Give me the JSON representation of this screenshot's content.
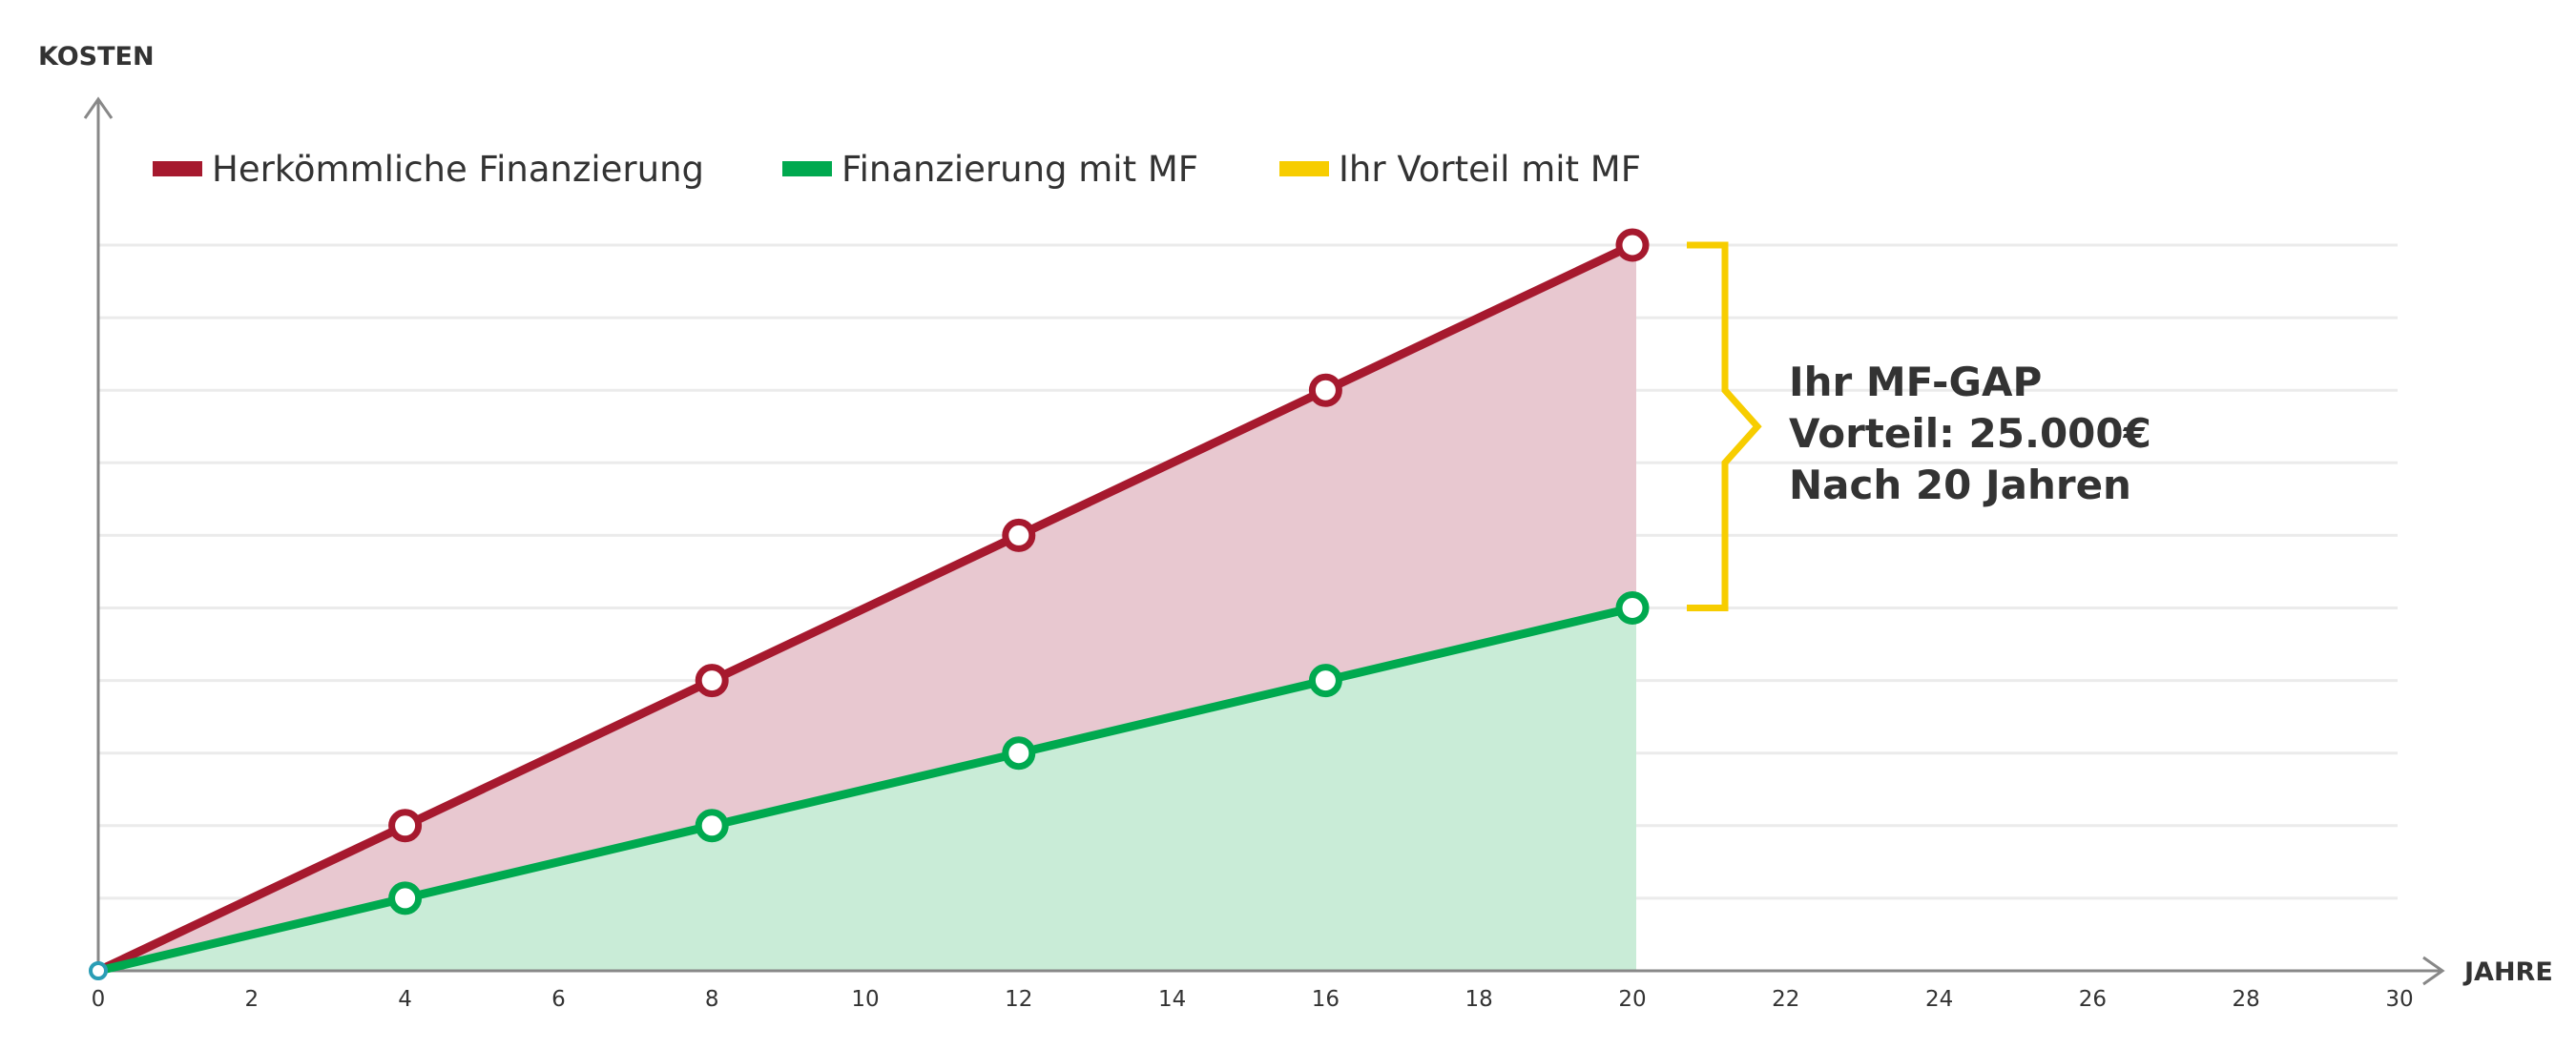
{
  "chart_data": {
    "type": "area",
    "xlabel": "JAHRE",
    "ylabel": "KOSTEN",
    "xlim": [
      0,
      30
    ],
    "ylim": [
      0,
      10
    ],
    "x_ticks": [
      0,
      2,
      4,
      6,
      8,
      10,
      12,
      14,
      16,
      18,
      20,
      22,
      24,
      26,
      28,
      30
    ],
    "x_tick_labels": [
      "0",
      "2",
      "4",
      "6",
      "8",
      "10",
      "12",
      "14",
      "16",
      "18",
      "20",
      "22",
      "24",
      "26",
      "28",
      "30"
    ],
    "grid": true,
    "grid_values": [
      1,
      2,
      3,
      4,
      5,
      6,
      7,
      8,
      9,
      10
    ],
    "series": [
      {
        "name": "Herkömmliche Finanzierung",
        "color": "#a6192e",
        "fill": "#e8c8d0",
        "x": [
          0,
          4,
          8,
          12,
          16,
          20
        ],
        "y": [
          0,
          2,
          4,
          6,
          8,
          10
        ]
      },
      {
        "name": "Finanzierung mit MF",
        "color": "#00a94f",
        "fill": "#c9ecd7",
        "x": [
          0,
          4,
          8,
          12,
          16,
          20
        ],
        "y": [
          0,
          1,
          2,
          3,
          4,
          5
        ]
      }
    ],
    "legend": [
      {
        "label": "Herkömmliche Finanzierung",
        "color": "#a6192e"
      },
      {
        "label": "Finanzierung mit MF",
        "color": "#00a94f"
      },
      {
        "label": "Ihr Vorteil mit MF",
        "color": "#f7cd00"
      }
    ],
    "legend_position": "top-left",
    "annotation": {
      "lines": [
        "Ihr MF-GAP",
        "Vorteil: 25.000€",
        "Nach 20 Jahren"
      ],
      "bracket_color": "#f7cd00",
      "x": 20,
      "y_from": 5,
      "y_to": 10
    },
    "axis_color": "#888888",
    "grid_color": "#ebebeb",
    "origin_marker_color": "#2a9db5"
  }
}
